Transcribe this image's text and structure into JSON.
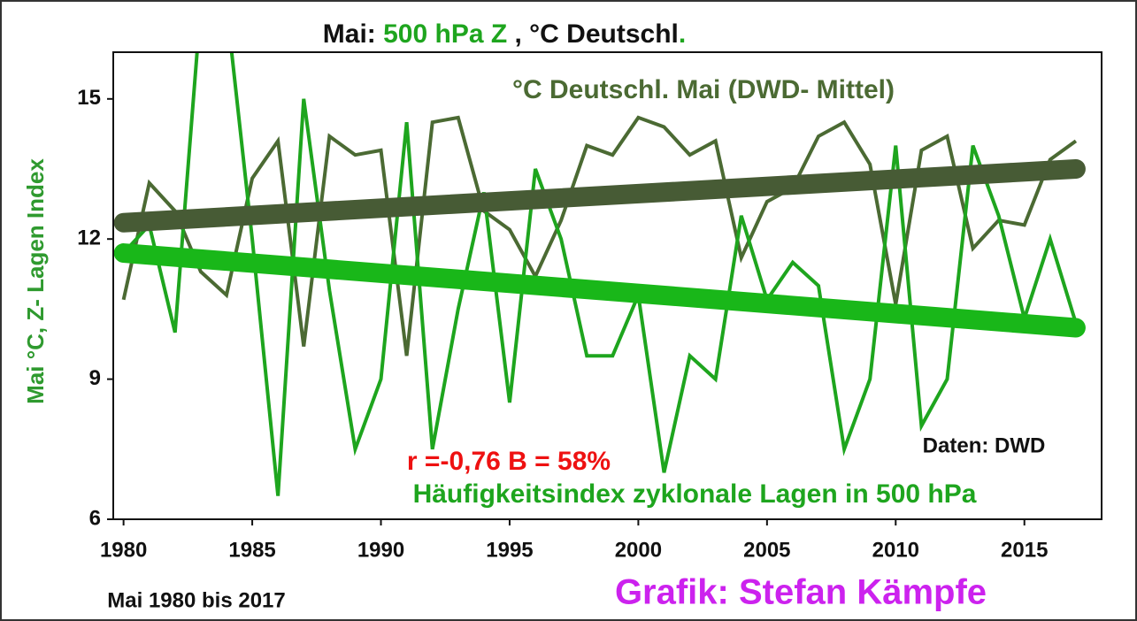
{
  "chart_data": {
    "type": "line",
    "title": [
      {
        "text": "Mai:",
        "color": "#111111"
      },
      {
        "text": "500 hPa Z",
        "color": "#1ea51e"
      },
      {
        "text": ", °C Deutschl",
        "color": "#111111"
      },
      {
        "text": ".",
        "color": "#1ea51e"
      }
    ],
    "y_label": "Mai °C, Z- Lagen Index",
    "y_label_color": "#2f9a2f",
    "x": [
      1980,
      1981,
      1982,
      1983,
      1984,
      1985,
      1986,
      1987,
      1988,
      1989,
      1990,
      1991,
      1992,
      1993,
      1994,
      1995,
      1996,
      1997,
      1998,
      1999,
      2000,
      2001,
      2002,
      2003,
      2004,
      2005,
      2006,
      2007,
      2008,
      2009,
      2010,
      2011,
      2012,
      2013,
      2014,
      2015,
      2016,
      2017
    ],
    "series": [
      {
        "name": "°C Deutschl. Mai (DWD- Mittel)",
        "color": "#4b6a33",
        "trend_color": "#475b35",
        "values": [
          10.7,
          13.2,
          12.6,
          11.3,
          10.8,
          13.3,
          14.1,
          9.7,
          14.2,
          13.8,
          13.9,
          9.5,
          14.5,
          14.6,
          12.6,
          12.2,
          11.2,
          12.4,
          14.0,
          13.8,
          14.6,
          14.4,
          13.8,
          14.1,
          11.6,
          12.8,
          13.1,
          14.2,
          14.5,
          13.6,
          10.6,
          13.9,
          14.2,
          11.8,
          12.4,
          12.3,
          13.7,
          14.1
        ],
        "trend": {
          "x": [
            1980,
            2017
          ],
          "values": [
            12.35,
            13.5
          ]
        }
      },
      {
        "name": "Häufigkeitsindex zyklonale Lagen in 500 hPa",
        "color": "#1ea51e",
        "trend_color": "#19b719",
        "values": [
          11.7,
          12.3,
          10.0,
          17.0,
          17.0,
          12.0,
          6.5,
          15.0,
          10.9,
          7.5,
          9.0,
          14.5,
          7.5,
          10.5,
          13.0,
          8.5,
          13.5,
          12.0,
          9.5,
          9.5,
          10.8,
          7.0,
          9.5,
          9.0,
          12.5,
          10.7,
          11.5,
          11.0,
          7.5,
          9.0,
          14.0,
          8.0,
          9.0,
          14.0,
          12.5,
          10.3,
          12.0,
          10.2
        ],
        "trend": {
          "x": [
            1980,
            2017
          ],
          "values": [
            11.7,
            10.1
          ]
        }
      }
    ],
    "annotations": [
      {
        "text": "r =-0,76 B = 58%",
        "color": "#ee1111"
      },
      {
        "text": "Daten: DWD",
        "color": "#111111"
      },
      {
        "text": "Mai 1980 bis 2017",
        "color": "#111111"
      },
      {
        "text": "Grafik: Stefan Kämpfe",
        "color": "#cc22ee"
      }
    ],
    "xlim": [
      1979.6,
      2018
    ],
    "ylim": [
      6,
      16
    ],
    "xticks": [
      1980,
      1985,
      1990,
      1995,
      2000,
      2005,
      2010,
      2015
    ],
    "yticks": [
      6,
      9,
      12,
      15
    ]
  }
}
